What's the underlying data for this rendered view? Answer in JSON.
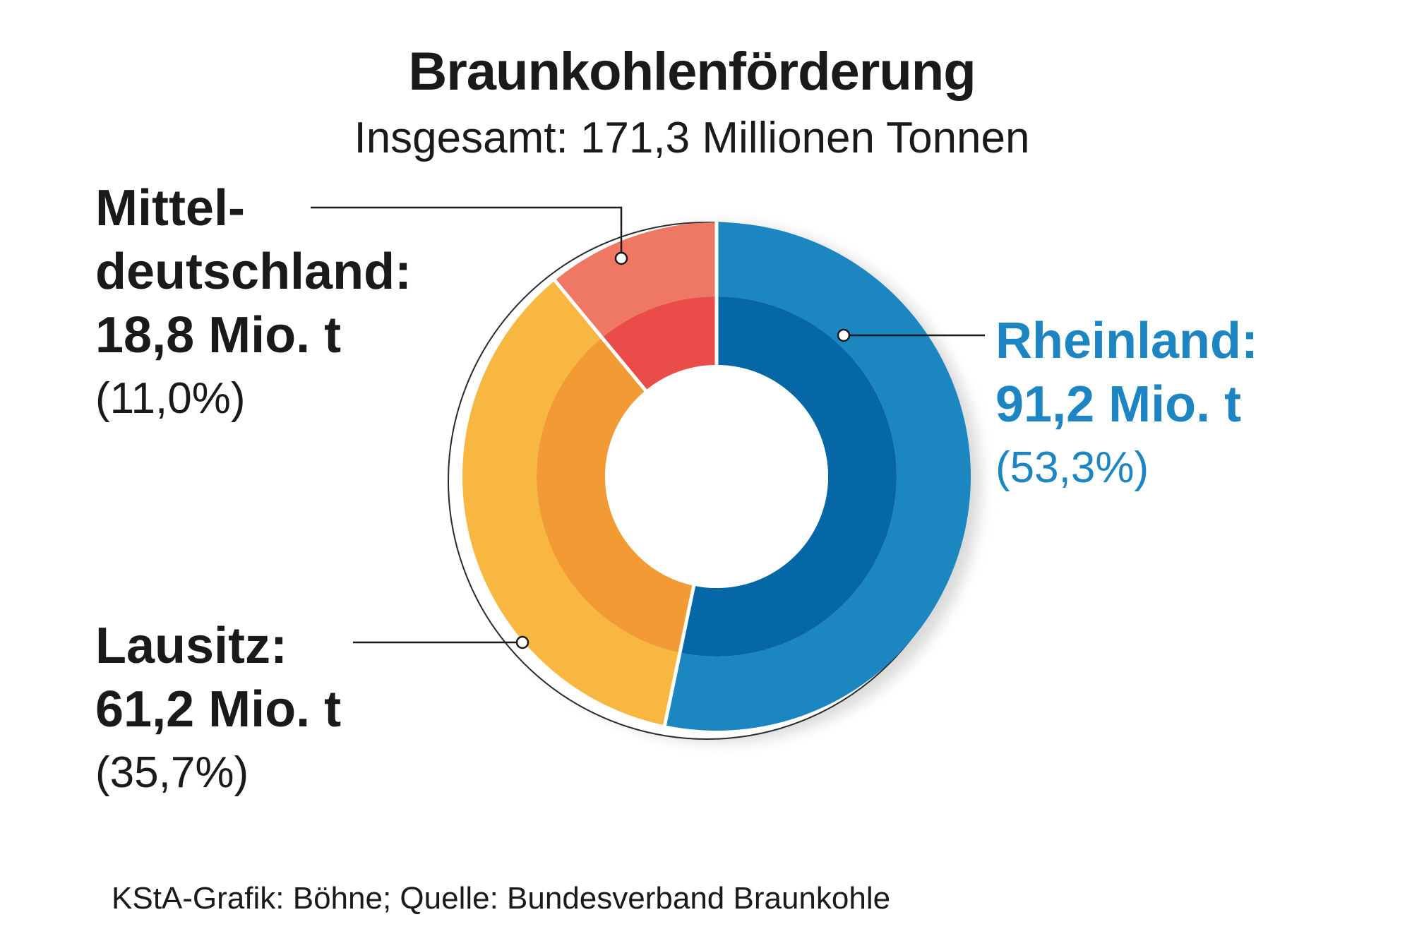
{
  "chart_data": {
    "type": "pie",
    "title": "Braunkohlenförderung",
    "subtitle": "Insgesamt: 171,3 Millionen Tonnen",
    "unit": "Mio. t",
    "total": 171.3,
    "slices": [
      {
        "name_lines": [
          "Rheinland:"
        ],
        "value": 91.2,
        "value_label": "91,2 Mio. t",
        "percent": 53.3,
        "percent_label": "(53,3%)",
        "color_outer": "#1b86c0",
        "color_inner": "#0567a5"
      },
      {
        "name_lines": [
          "Lausitz:"
        ],
        "value": 61.2,
        "value_label": "61,2 Mio. t",
        "percent": 35.7,
        "percent_label": "(35,7%)",
        "color_outer": "#f8b741",
        "color_inner": "#f29a33"
      },
      {
        "name_lines": [
          "Mittel-",
          "deutschland:"
        ],
        "value": 18.8,
        "value_label": "18,8 Mio. t",
        "percent": 11.0,
        "percent_label": "(11,0%)",
        "color_outer": "#ee7863",
        "color_inner": "#e94c49"
      }
    ],
    "label_color_highlight": "#1d86c2"
  },
  "source": "KStA-Grafik: Böhne; Quelle: Bundesverband Braunkohle"
}
